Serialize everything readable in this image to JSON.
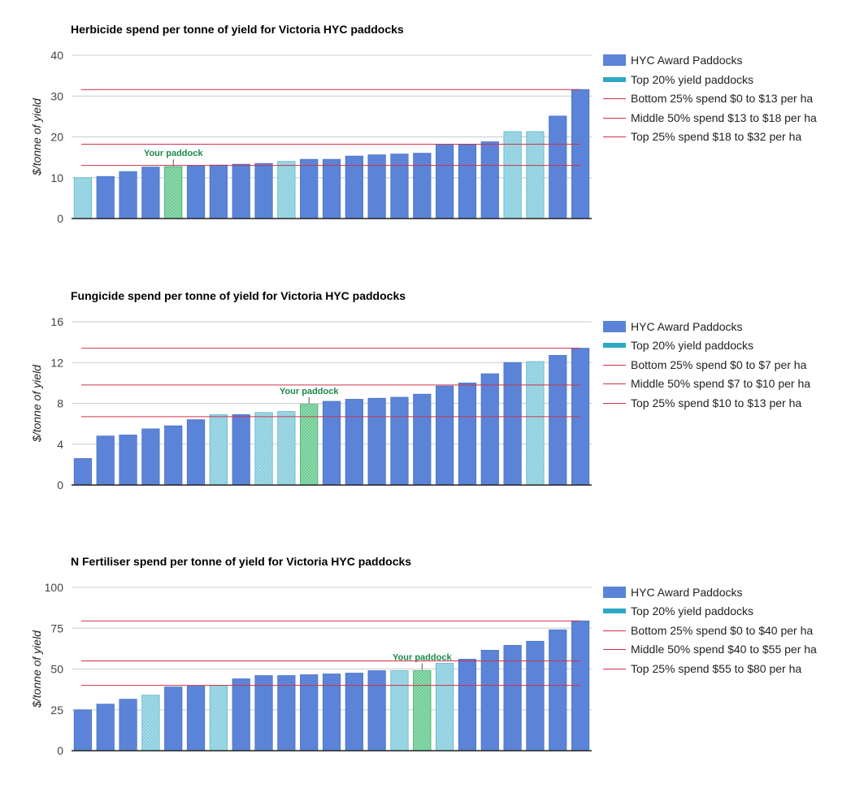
{
  "colors": {
    "bar": "#5b84d8",
    "bar_stroke": "#4a73c4",
    "top20": "#a6dbe8",
    "top20_stroke": "#5fb7cc",
    "your": "#8fdcae",
    "your_stroke": "#3daa6a",
    "your_label": "#1a8a4a",
    "ref_line": "#d0304c",
    "grid": "#cccccc",
    "axis": "#222222"
  },
  "chart_data": [
    {
      "type": "bar",
      "title": "Herbicide spend per tonne of yield for Victoria HYC paddocks",
      "ylabel": "$/tonne of yield",
      "ylim": [
        0,
        40
      ],
      "yticks": [
        "0",
        "10",
        "20",
        "30",
        "40"
      ],
      "tick_values": [
        0,
        10,
        20,
        30,
        40
      ],
      "values": [
        10,
        10.3,
        11.5,
        12.6,
        12.7,
        13,
        13.1,
        13.3,
        13.5,
        14,
        14.5,
        14.5,
        15.3,
        15.6,
        15.8,
        16,
        18,
        18.1,
        18.8,
        21.3,
        21.3,
        25.1,
        31.6
      ],
      "categories": [
        "top20",
        "hyc",
        "hyc",
        "hyc",
        "your",
        "hyc",
        "hyc",
        "hyc",
        "hyc",
        "top20",
        "hyc",
        "hyc",
        "hyc",
        "hyc",
        "hyc",
        "hyc",
        "hyc",
        "hyc",
        "hyc",
        "top20",
        "top20",
        "hyc",
        "hyc"
      ],
      "your_index": 4,
      "your_label": "Your paddock",
      "ref_lines": [
        13,
        18.2,
        31.6
      ],
      "legend": [
        "HYC Award Paddocks",
        "Top 20% yield paddocks",
        "Bottom 25% spend $0 to $13 per ha",
        "Middle 50% spend $13 to $18 per ha",
        "Top 25% spend $18 to $32 per ha"
      ]
    },
    {
      "type": "bar",
      "title": "Fungicide spend per tonne of yield for Victoria HYC paddocks",
      "ylabel": "$/tonne of yield",
      "ylim": [
        0,
        16
      ],
      "yticks": [
        "0",
        "4",
        "8",
        "12",
        "16"
      ],
      "tick_values": [
        0,
        4,
        8,
        12,
        16
      ],
      "values": [
        2.6,
        4.8,
        4.9,
        5.5,
        5.8,
        6.4,
        6.9,
        6.9,
        7.1,
        7.2,
        7.9,
        8.2,
        8.4,
        8.5,
        8.6,
        8.9,
        9.7,
        10,
        10.9,
        12,
        12.1,
        12.7,
        13.4
      ],
      "categories": [
        "hyc",
        "hyc",
        "hyc",
        "hyc",
        "hyc",
        "hyc",
        "top20",
        "hyc",
        "top20",
        "top20",
        "your",
        "hyc",
        "hyc",
        "hyc",
        "hyc",
        "hyc",
        "hyc",
        "hyc",
        "hyc",
        "hyc",
        "top20",
        "hyc",
        "hyc"
      ],
      "your_index": 10,
      "your_label": "Your paddock",
      "ref_lines": [
        6.7,
        9.8,
        13.4
      ],
      "legend": [
        "HYC Award Paddocks",
        "Top 20% yield paddocks",
        "Bottom 25% spend $0 to $7 per ha",
        "Middle 50% spend $7 to $10 per ha",
        "Top 25% spend $10 to $13 per ha"
      ]
    },
    {
      "type": "bar",
      "title": "N Fertiliser spend per tonne of yield for Victoria HYC paddocks",
      "ylabel": "$/tonne of yield",
      "ylim": [
        0,
        100
      ],
      "yticks": [
        "0",
        "25",
        "50",
        "75",
        "100"
      ],
      "tick_values": [
        0,
        25,
        50,
        75,
        100
      ],
      "values": [
        25,
        28.5,
        31.5,
        34,
        39,
        39.5,
        40,
        44,
        46,
        46,
        46.5,
        47,
        47.5,
        49,
        49,
        49,
        53.5,
        56,
        61.5,
        64.5,
        67,
        74,
        79.5
      ],
      "categories": [
        "hyc",
        "hyc",
        "hyc",
        "top20",
        "hyc",
        "hyc",
        "top20",
        "hyc",
        "hyc",
        "hyc",
        "hyc",
        "hyc",
        "hyc",
        "hyc",
        "top20",
        "your",
        "top20",
        "hyc",
        "hyc",
        "hyc",
        "hyc",
        "hyc",
        "hyc"
      ],
      "your_index": 15,
      "your_label": "Your paddock",
      "ref_lines": [
        40,
        55,
        79.5
      ],
      "legend": [
        "HYC Award Paddocks",
        "Top 20% yield paddocks",
        "Bottom 25% spend $0 to $40 per ha",
        "Middle 50% spend $40 to $55 per ha",
        "Top 25% spend $55 to $80 per ha"
      ]
    }
  ]
}
